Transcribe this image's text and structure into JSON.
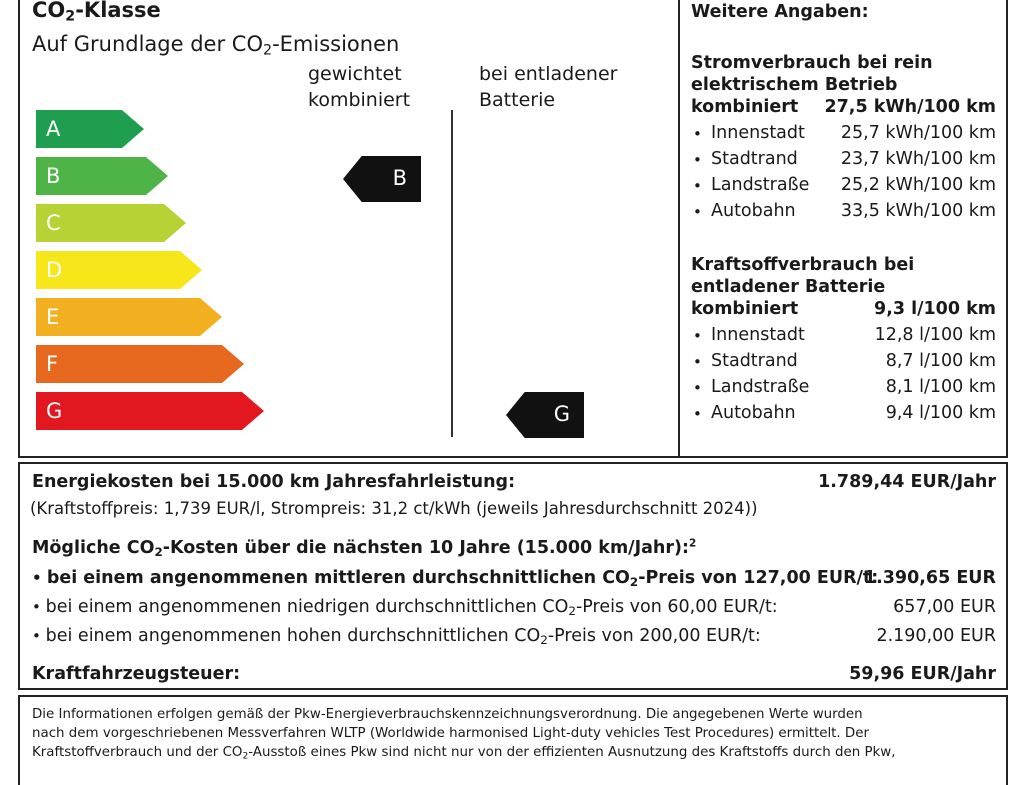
{
  "co2": {
    "title_a": "CO",
    "title_sub": "2",
    "title_b": "-Klasse",
    "subtitle_a": "Auf Grundlage der CO",
    "subtitle_sub": "2",
    "subtitle_b": "-Emissionen",
    "col1_line1": "gewichtet",
    "col1_line2": "kombiniert",
    "col2_line1": "bei entladener",
    "col2_line2": "Batterie",
    "classes": [
      {
        "letter": "A",
        "color": "#1f9e4f"
      },
      {
        "letter": "B",
        "color": "#4fb447"
      },
      {
        "letter": "C",
        "color": "#b7d234"
      },
      {
        "letter": "D",
        "color": "#f6e61a"
      },
      {
        "letter": "E",
        "color": "#f2b020"
      },
      {
        "letter": "F",
        "color": "#e7681f"
      },
      {
        "letter": "G",
        "color": "#e3171f"
      }
    ],
    "weighted_class": "B",
    "discharged_class": "G"
  },
  "weitere": {
    "title": "Weitere Angaben:",
    "strom": {
      "heading_line1": "Stromverbrauch bei rein",
      "heading_line2": "elektrischem Betrieb",
      "combined_label": "kombiniert",
      "combined_value": "27,5 kWh/100 km",
      "items": [
        {
          "label": "Innenstadt",
          "value": "25,7 kWh/100 km"
        },
        {
          "label": "Stadtrand",
          "value": "23,7 kWh/100 km"
        },
        {
          "label": "Landstraße",
          "value": "25,2 kWh/100 km"
        },
        {
          "label": "Autobahn",
          "value": "33,5 kWh/100 km"
        }
      ]
    },
    "kraftstoff": {
      "heading_line1": "Kraftsoffverbrauch bei",
      "heading_line2": "entladener Batterie",
      "combined_label": "kombiniert",
      "combined_value": "9,3 l/100 km",
      "items": [
        {
          "label": "Innenstadt",
          "value": "12,8 l/100 km"
        },
        {
          "label": "Stadtrand",
          "value": "8,7 l/100 km"
        },
        {
          "label": "Landstraße",
          "value": "8,1 l/100 km"
        },
        {
          "label": "Autobahn",
          "value": "9,4 l/100 km"
        }
      ]
    }
  },
  "kosten": {
    "energy_label": "Energiekosten bei 15.000 km Jahresfahrleistung:",
    "energy_value": "1.789,44 EUR/Jahr",
    "energy_note": "(Kraftstoffpreis: 1,739 EUR/l, Strompreis: 31,2 ct/kWh (jeweils Jahresdurchschnitt 2024))",
    "co2_heading_a": "Mögliche CO",
    "co2_heading_sub": "2",
    "co2_heading_b": "-Kosten über die nächsten 10 Jahre (15.000 km/Jahr):",
    "co2_heading_sup": "2",
    "rows": [
      {
        "text_a": "bei einem angenommenen mittleren durchschnittlichen CO",
        "sub": "2",
        "text_b": "-Preis von 127,00 EUR/t:",
        "value": "1.390,65 EUR",
        "bold": true
      },
      {
        "text_a": "bei einem angenommenen niedrigen durchschnittlichen CO",
        "sub": "2",
        "text_b": "-Preis von 60,00 EUR/t:",
        "value": "657,00 EUR",
        "bold": false
      },
      {
        "text_a": "bei einem angenommenen hohen durchschnittlichen CO",
        "sub": "2",
        "text_b": "-Preis von 200,00 EUR/t:",
        "value": "2.190,00 EUR",
        "bold": false
      }
    ],
    "tax_label": "Kraftfahrzeugsteuer:",
    "tax_value": "59,96 EUR/Jahr"
  },
  "footer": {
    "line1": "Die Informationen erfolgen gemäß der Pkw-Energieverbrauchskennzeichnungsverordnung. Die angegebenen Werte wurden",
    "line2": "nach dem vorgeschriebenen Messverfahren WLTP (Worldwide harmonised Light-duty vehicles Test Procedures) ermittelt. Der",
    "line3_a": "Kraftstoffverbrauch und der CO",
    "line3_sub": "2",
    "line3_b": "-Ausstoß eines Pkw sind nicht nur von der effizienten Ausnutzung des Kraftstoffs durch den Pkw,"
  }
}
